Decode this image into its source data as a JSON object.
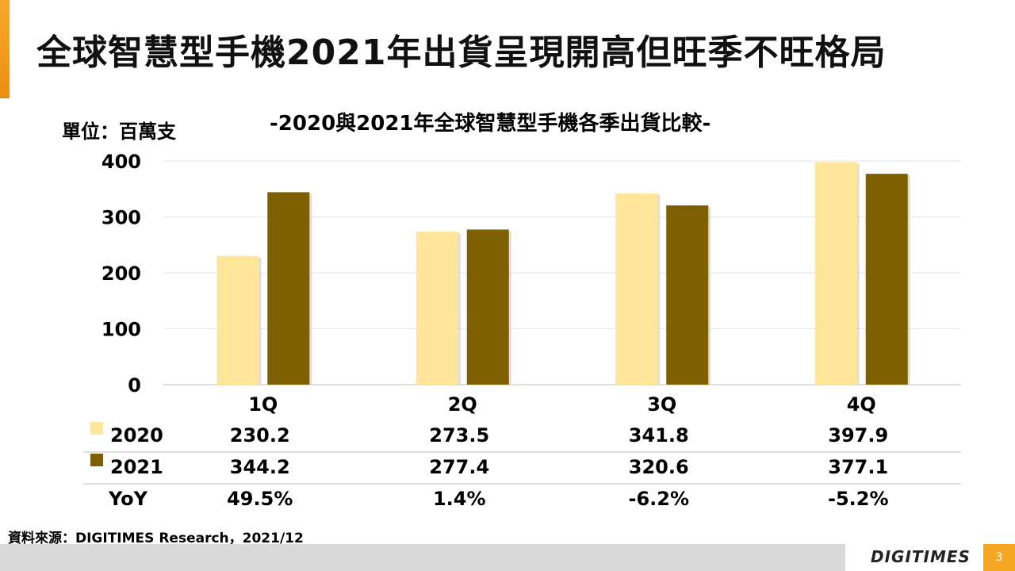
{
  "slide": {
    "title": "全球智慧型手機2021年出貨呈現開高但旺季不旺格局",
    "source": "資料來源：DIGITIMES Research，2021/12",
    "logo": "DIGITIMES",
    "page_number": "3"
  },
  "chart_data": {
    "type": "bar",
    "title": "-2020與2021年全球智慧型手機各季出貨比較-",
    "unit_label": "單位：百萬支",
    "categories": [
      "1Q",
      "2Q",
      "3Q",
      "4Q"
    ],
    "series": [
      {
        "name": "2020",
        "values": [
          230.2,
          273.5,
          341.8,
          397.9
        ],
        "color": "#ffe699"
      },
      {
        "name": "2021",
        "values": [
          344.2,
          277.4,
          320.6,
          377.1
        ],
        "color": "#7f6000"
      }
    ],
    "y_ticks": [
      "0",
      "100",
      "200",
      "300",
      "400"
    ],
    "ylim": [
      0,
      400
    ],
    "grid": true,
    "legend": "data-table",
    "table": {
      "rows": [
        {
          "label": "2020",
          "values": [
            "230.2",
            "273.5",
            "341.8",
            "397.9"
          ]
        },
        {
          "label": "2021",
          "values": [
            "344.2",
            "277.4",
            "320.6",
            "377.1"
          ]
        },
        {
          "label": "YoY",
          "values": [
            "49.5%",
            "1.4%",
            "-6.2%",
            "-5.2%"
          ]
        }
      ]
    }
  }
}
